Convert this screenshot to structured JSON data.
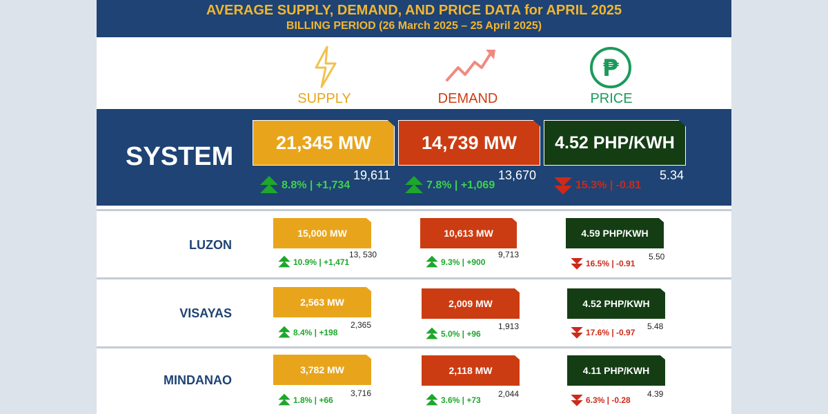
{
  "header": {
    "title": "AVERAGE SUPPLY, DEMAND, AND PRICE DATA for APRIL 2025",
    "subtitle": "BILLING PERIOD (26 March 2025 – 25 April 2025)"
  },
  "legend": {
    "supply": {
      "label": "SUPPLY",
      "icon": "lightning-icon",
      "color": "#e8a51c"
    },
    "demand": {
      "label": "DEMAND",
      "icon": "trend-up-icon",
      "color": "#cc3c12"
    },
    "price": {
      "label": "PRICE",
      "icon": "peso-coin-icon",
      "color": "#1b9a5c"
    }
  },
  "system": {
    "label": "SYSTEM",
    "supply": {
      "value": "21,345 MW",
      "previous": "19,611",
      "change": "8.8% | +1,734",
      "direction": "up"
    },
    "demand": {
      "value": "14,739 MW",
      "previous": "13,670",
      "change": "7.8% | +1,069",
      "direction": "up"
    },
    "price": {
      "value": "4.52 PHP/KWH",
      "previous": "5.34",
      "change": "15.3% | -0.81",
      "direction": "down"
    }
  },
  "regions": [
    {
      "label": "LUZON",
      "supply": {
        "value": "15,000 MW",
        "previous": "13, 530",
        "change": "10.9% | +1,471",
        "direction": "up"
      },
      "demand": {
        "value": "10,613 MW",
        "previous": "9,713",
        "change": "9.3% | +900",
        "direction": "up"
      },
      "price": {
        "value": "4.59 PHP/KWH",
        "previous": "5.50",
        "change": "16.5% | -0.91",
        "direction": "down"
      }
    },
    {
      "label": "VISAYAS",
      "supply": {
        "value": "2,563 MW",
        "previous": "2,365",
        "change": "8.4% | +198",
        "direction": "up"
      },
      "demand": {
        "value": "2,009 MW",
        "previous": "1,913",
        "change": "5.0% | +96",
        "direction": "up"
      },
      "price": {
        "value": "4.52 PHP/KWH",
        "previous": "5.48",
        "change": "17.6% | -0.97",
        "direction": "down"
      }
    },
    {
      "label": "MINDANAO",
      "supply": {
        "value": "3,782 MW",
        "previous": "3,716",
        "change": "1.8% | +66",
        "direction": "up"
      },
      "demand": {
        "value": "2,118 MW",
        "previous": "2,044",
        "change": "3.6% | +73",
        "direction": "up"
      },
      "price": {
        "value": "4.11 PHP/KWH",
        "previous": "4.39",
        "change": "6.3% | -0.28",
        "direction": "down"
      }
    }
  ]
}
